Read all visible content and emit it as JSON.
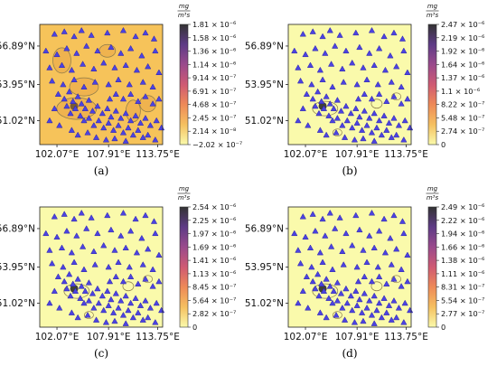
{
  "colors": {
    "station_marker": "#4c43e0",
    "station_edge": "#2a22a8",
    "contour_line": "#8a7a4a",
    "panel_a_background": "#f6c35a",
    "low_value_background": "#fafaab",
    "colormap": [
      "#fafaab",
      "#f5c060",
      "#ee8a58",
      "#cf5a73",
      "#9a4a8c",
      "#5e3b86",
      "#333333"
    ]
  },
  "map_axes": {
    "y_ticks": [
      "56.89°N",
      "53.95°N",
      "51.02°N"
    ],
    "x_ticks": [
      "102.07°E",
      "107.91°E",
      "113.75°E"
    ]
  },
  "panels": [
    {
      "caption": "(a)",
      "unit_numerator": "mg",
      "unit_denominator": "m³s",
      "colorbar_ticks": [
        "1.81 × 10⁻⁶",
        "1.58 × 10⁻⁶",
        "1.36 × 10⁻⁶",
        "1.14 × 10⁻⁶",
        "9.14 × 10⁻⁷",
        "6.91 × 10⁻⁷",
        "4.68 × 10⁻⁷",
        "2.45 × 10⁻⁷",
        "2.14 × 10⁻⁸",
        "−2.02 × 10⁻⁷"
      ]
    },
    {
      "caption": "(b)",
      "unit_numerator": "mg",
      "unit_denominator": "m³s",
      "colorbar_ticks": [
        "2.47 × 10⁻⁶",
        "2.19 × 10⁻⁶",
        "1.92 × 10⁻⁶",
        "1.64 × 10⁻⁶",
        "1.37 × 10⁻⁶",
        "1.1 × 10⁻⁶",
        "8.22 × 10⁻⁷",
        "5.48 × 10⁻⁷",
        "2.74 × 10⁻⁷",
        "0"
      ]
    },
    {
      "caption": "(c)",
      "unit_numerator": "mg",
      "unit_denominator": "m³s",
      "colorbar_ticks": [
        "2.54 × 10⁻⁶",
        "2.25 × 10⁻⁶",
        "1.97 × 10⁻⁶",
        "1.69 × 10⁻⁶",
        "1.41 × 10⁻⁶",
        "1.13 × 10⁻⁶",
        "8.45 × 10⁻⁷",
        "5.64 × 10⁻⁷",
        "2.82 × 10⁻⁷",
        "0"
      ]
    },
    {
      "caption": "(d)",
      "unit_numerator": "mg",
      "unit_denominator": "m³s",
      "colorbar_ticks": [
        "2.49 × 10⁻⁶",
        "2.22 × 10⁻⁶",
        "1.94 × 10⁻⁶",
        "1.66 × 10⁻⁶",
        "1.38 × 10⁻⁶",
        "1.11 × 10⁻⁶",
        "8.31 × 10⁻⁷",
        "5.54 × 10⁻⁷",
        "2.77 × 10⁻⁷",
        "0"
      ]
    }
  ]
}
